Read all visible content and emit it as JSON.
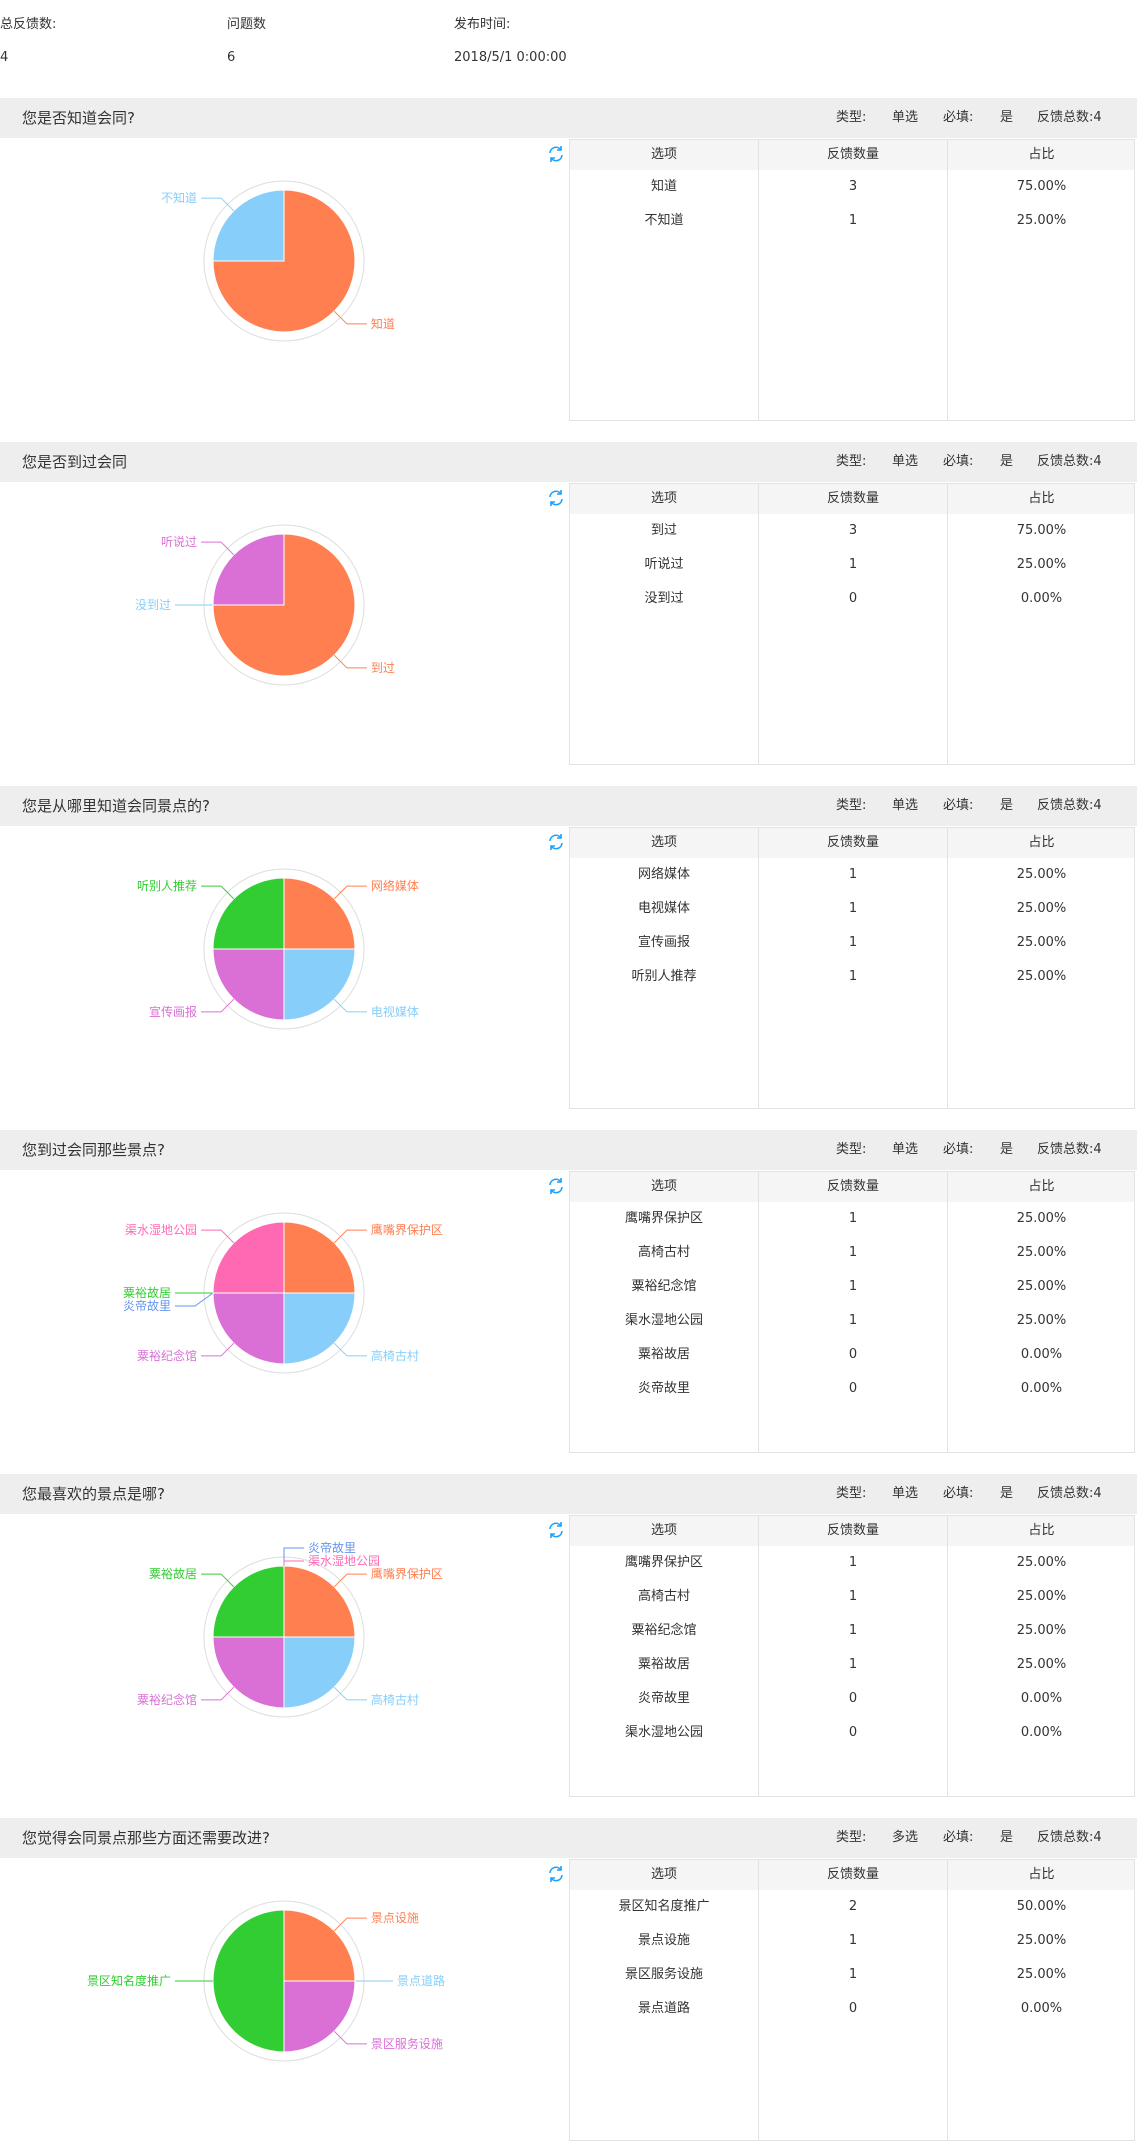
{
  "summary": {
    "total_feedback_label": "总反馈数:",
    "total_feedback_value": "4",
    "question_count_label": "问题数",
    "question_count_value": "6",
    "publish_time_label": "发布时间:",
    "publish_time_value": "2018/5/1 0:00:00"
  },
  "labels": {
    "type": "类型:",
    "required": "必填:",
    "col_option": "选项",
    "col_count": "反馈数量",
    "col_ratio": "占比"
  },
  "icons": {
    "refresh": "refresh-icon"
  },
  "colors": {
    "header_bg": "#eeeeee",
    "orange": "#FF7F50",
    "light_blue": "#87CEFA",
    "orchid": "#DA70D6",
    "green": "#32CD32",
    "royal_blue": "#6495ED",
    "hot_pink": "#FF69B4",
    "refresh": "#1e9fff"
  },
  "questions": [
    {
      "title": "您是否知道会同?",
      "type": "单选",
      "required": "是",
      "total": "反馈总数:4",
      "rows": [
        {
          "option": "知道",
          "count": "3",
          "ratio": "75.00%"
        },
        {
          "option": "不知道",
          "count": "1",
          "ratio": "25.00%"
        }
      ]
    },
    {
      "title": "您是否到过会同",
      "type": "单选",
      "required": "是",
      "total": "反馈总数:4",
      "rows": [
        {
          "option": "到过",
          "count": "3",
          "ratio": "75.00%"
        },
        {
          "option": "听说过",
          "count": "1",
          "ratio": "25.00%"
        },
        {
          "option": "没到过",
          "count": "0",
          "ratio": "0.00%"
        }
      ]
    },
    {
      "title": "您是从哪里知道会同景点的?",
      "type": "单选",
      "required": "是",
      "total": "反馈总数:4",
      "rows": [
        {
          "option": "网络媒体",
          "count": "1",
          "ratio": "25.00%"
        },
        {
          "option": "电视媒体",
          "count": "1",
          "ratio": "25.00%"
        },
        {
          "option": "宣传画报",
          "count": "1",
          "ratio": "25.00%"
        },
        {
          "option": "听别人推荐",
          "count": "1",
          "ratio": "25.00%"
        }
      ]
    },
    {
      "title": "您到过会同那些景点?",
      "type": "单选",
      "required": "是",
      "total": "反馈总数:4",
      "rows": [
        {
          "option": "鹰嘴界保护区",
          "count": "1",
          "ratio": "25.00%"
        },
        {
          "option": "高椅古村",
          "count": "1",
          "ratio": "25.00%"
        },
        {
          "option": "粟裕纪念馆",
          "count": "1",
          "ratio": "25.00%"
        },
        {
          "option": "渠水湿地公园",
          "count": "1",
          "ratio": "25.00%"
        },
        {
          "option": "粟裕故居",
          "count": "0",
          "ratio": "0.00%"
        },
        {
          "option": "炎帝故里",
          "count": "0",
          "ratio": "0.00%"
        }
      ]
    },
    {
      "title": "您最喜欢的景点是哪?",
      "type": "单选",
      "required": "是",
      "total": "反馈总数:4",
      "rows": [
        {
          "option": "鹰嘴界保护区",
          "count": "1",
          "ratio": "25.00%"
        },
        {
          "option": "高椅古村",
          "count": "1",
          "ratio": "25.00%"
        },
        {
          "option": "粟裕纪念馆",
          "count": "1",
          "ratio": "25.00%"
        },
        {
          "option": "粟裕故居",
          "count": "1",
          "ratio": "25.00%"
        },
        {
          "option": "炎帝故里",
          "count": "0",
          "ratio": "0.00%"
        },
        {
          "option": "渠水湿地公园",
          "count": "0",
          "ratio": "0.00%"
        }
      ]
    },
    {
      "title": "您觉得会同景点那些方面还需要改进?",
      "type": "多选",
      "required": "是",
      "total": "反馈总数:4",
      "rows": [
        {
          "option": "景区知名度推广",
          "count": "2",
          "ratio": "50.00%"
        },
        {
          "option": "景点设施",
          "count": "1",
          "ratio": "25.00%"
        },
        {
          "option": "景区服务设施",
          "count": "1",
          "ratio": "25.00%"
        },
        {
          "option": "景点道路",
          "count": "0",
          "ratio": "0.00%"
        }
      ]
    }
  ],
  "chart_data": [
    {
      "type": "pie",
      "slices": [
        {
          "label": "知道",
          "value": 3,
          "color": "#FF7F50"
        },
        {
          "label": "不知道",
          "value": 1,
          "color": "#87CEFA"
        }
      ]
    },
    {
      "type": "pie",
      "slices": [
        {
          "label": "到过",
          "value": 3,
          "color": "#FF7F50"
        },
        {
          "label": "没到过",
          "value": 0,
          "color": "#87CEFA"
        },
        {
          "label": "听说过",
          "value": 1,
          "color": "#DA70D6"
        }
      ]
    },
    {
      "type": "pie",
      "slices": [
        {
          "label": "网络媒体",
          "value": 1,
          "color": "#FF7F50"
        },
        {
          "label": "电视媒体",
          "value": 1,
          "color": "#87CEFA"
        },
        {
          "label": "宣传画报",
          "value": 1,
          "color": "#DA70D6"
        },
        {
          "label": "听别人推荐",
          "value": 1,
          "color": "#32CD32"
        }
      ]
    },
    {
      "type": "pie",
      "slices": [
        {
          "label": "鹰嘴界保护区",
          "value": 1,
          "color": "#FF7F50"
        },
        {
          "label": "高椅古村",
          "value": 1,
          "color": "#87CEFA"
        },
        {
          "label": "粟裕纪念馆",
          "value": 1,
          "color": "#DA70D6"
        },
        {
          "label": "粟裕故居",
          "value": 0,
          "color": "#32CD32"
        },
        {
          "label": "炎帝故里",
          "value": 0,
          "color": "#6495ED"
        },
        {
          "label": "渠水湿地公园",
          "value": 1,
          "color": "#FF69B4"
        }
      ]
    },
    {
      "type": "pie",
      "slices": [
        {
          "label": "鹰嘴界保护区",
          "value": 1,
          "color": "#FF7F50"
        },
        {
          "label": "高椅古村",
          "value": 1,
          "color": "#87CEFA"
        },
        {
          "label": "粟裕纪念馆",
          "value": 1,
          "color": "#DA70D6"
        },
        {
          "label": "粟裕故居",
          "value": 1,
          "color": "#32CD32"
        },
        {
          "label": "炎帝故里",
          "value": 0,
          "color": "#6495ED"
        },
        {
          "label": "渠水湿地公园",
          "value": 0,
          "color": "#FF69B4"
        }
      ]
    },
    {
      "type": "pie",
      "slices": [
        {
          "label": "景点设施",
          "value": 1,
          "color": "#FF7F50"
        },
        {
          "label": "景点道路",
          "value": 0,
          "color": "#87CEFA"
        },
        {
          "label": "景区服务设施",
          "value": 1,
          "color": "#DA70D6"
        },
        {
          "label": "景区知名度推广",
          "value": 2,
          "color": "#32CD32"
        }
      ]
    }
  ]
}
